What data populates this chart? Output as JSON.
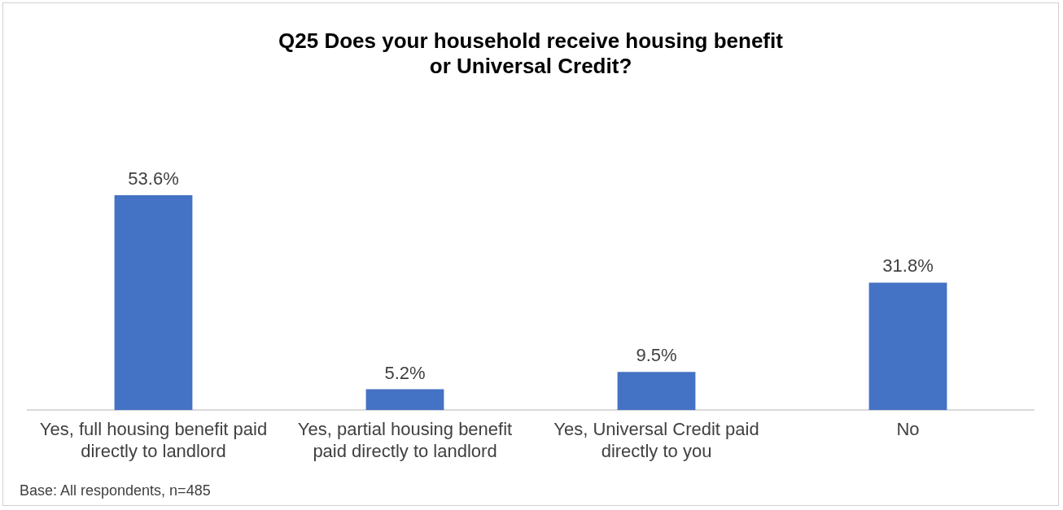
{
  "chart_data": {
    "type": "bar",
    "title": "Q25 Does your household receive housing benefit or Universal Credit?",
    "categories": [
      "Yes, full housing benefit paid directly to landlord",
      "Yes, partial housing benefit paid directly to landlord",
      "Yes, Universal Credit paid directly to you",
      "No"
    ],
    "values": [
      53.6,
      5.2,
      9.5,
      31.8
    ],
    "value_labels": [
      "53.6%",
      "5.2%",
      "9.5%",
      "31.8%"
    ],
    "color": "#4472c4",
    "grid": false,
    "legend": false,
    "annotations": [
      "Base: All respondents, n=485"
    ]
  }
}
